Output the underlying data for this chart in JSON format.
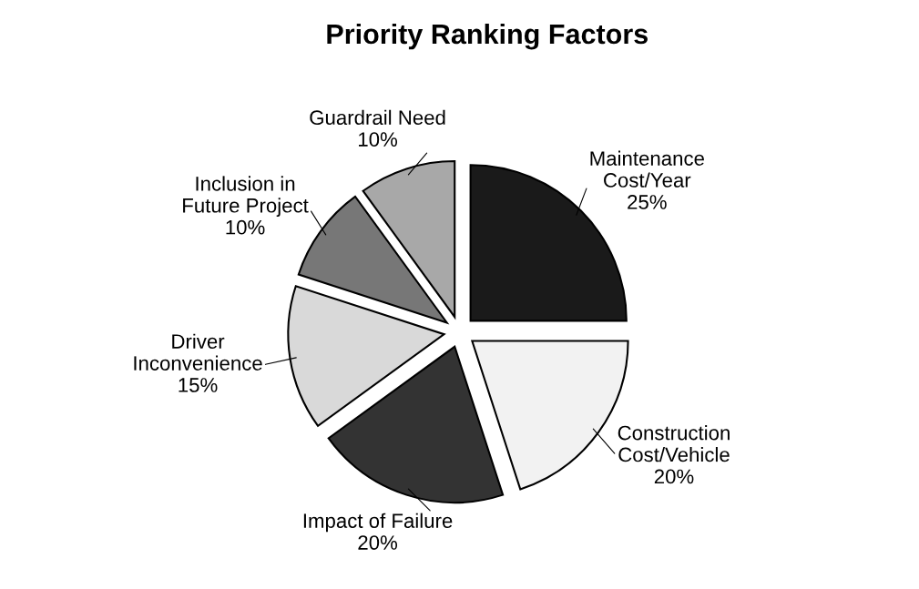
{
  "chart_data": {
    "type": "pie",
    "title": "Priority Ranking Factors",
    "categories": [
      "Maintenance\nCost/Year",
      "Construction\nCost/Vehicle",
      "Impact of Failure",
      "Driver\nInconvenience",
      "Inclusion in\nFuture Project",
      "Guardrail Need"
    ],
    "values": [
      25,
      20,
      20,
      15,
      10,
      10
    ],
    "value_labels": [
      "25%",
      "20%",
      "20%",
      "15%",
      "10%",
      "10%"
    ],
    "colors": [
      "#1a1a1a",
      "#f2f2f2",
      "#333333",
      "#d9d9d9",
      "#777777",
      "#a8a8a8"
    ],
    "legend": false
  }
}
